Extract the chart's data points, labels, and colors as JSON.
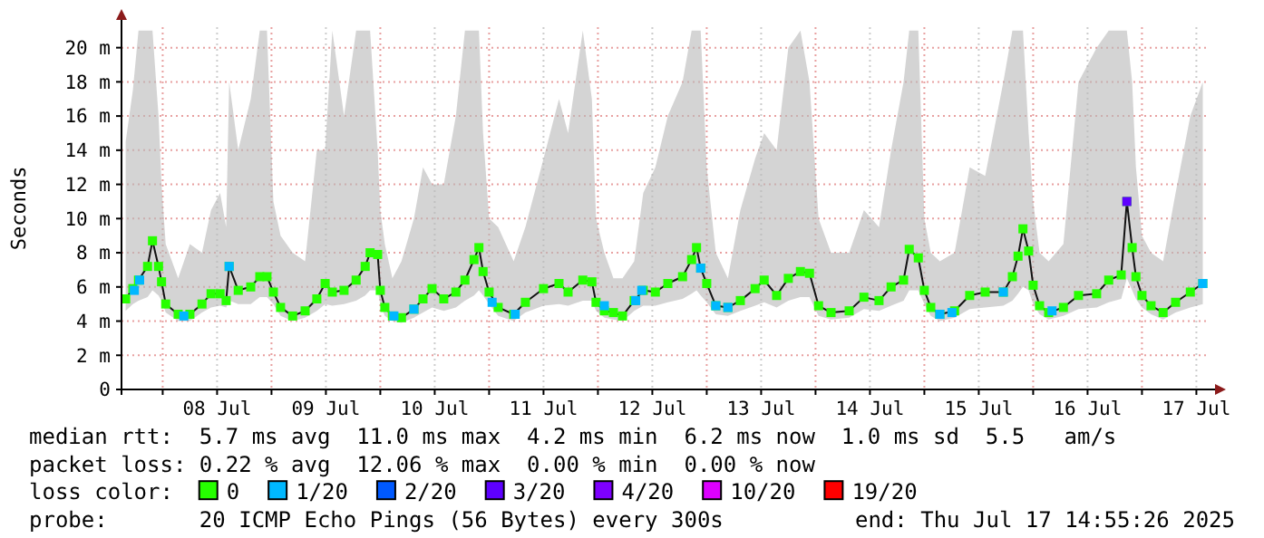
{
  "chart_data": {
    "type": "line",
    "ylabel": "Seconds",
    "xlim": [
      "2025-07-07T14:55",
      "2025-07-17T14:55"
    ],
    "xticks": [
      {
        "value": "2025-07-08T00:00",
        "label": null
      },
      {
        "value": "2025-07-08T12:00",
        "label": "08 Jul"
      },
      {
        "value": "2025-07-09T00:00",
        "label": null
      },
      {
        "value": "2025-07-09T12:00",
        "label": "09 Jul"
      },
      {
        "value": "2025-07-10T00:00",
        "label": null
      },
      {
        "value": "2025-07-10T12:00",
        "label": "10 Jul"
      },
      {
        "value": "2025-07-11T00:00",
        "label": null
      },
      {
        "value": "2025-07-11T12:00",
        "label": "11 Jul"
      },
      {
        "value": "2025-07-12T00:00",
        "label": null
      },
      {
        "value": "2025-07-12T12:00",
        "label": "12 Jul"
      },
      {
        "value": "2025-07-13T00:00",
        "label": null
      },
      {
        "value": "2025-07-13T12:00",
        "label": "13 Jul"
      },
      {
        "value": "2025-07-14T00:00",
        "label": null
      },
      {
        "value": "2025-07-14T12:00",
        "label": "14 Jul"
      },
      {
        "value": "2025-07-15T00:00",
        "label": null
      },
      {
        "value": "2025-07-15T12:00",
        "label": "15 Jul"
      },
      {
        "value": "2025-07-16T00:00",
        "label": null
      },
      {
        "value": "2025-07-16T12:00",
        "label": "16 Jul"
      },
      {
        "value": "2025-07-17T00:00",
        "label": null
      },
      {
        "value": "2025-07-17T12:00",
        "label": "17 Jul"
      }
    ],
    "ylim": [
      0,
      21.2
    ],
    "yticks": [
      0,
      {
        "value": 2,
        "label": "2 m"
      },
      {
        "value": 4,
        "label": "4 m"
      },
      {
        "value": 6,
        "label": "6 m"
      },
      {
        "value": 8,
        "label": "8 m"
      },
      {
        "value": 10,
        "label": "10 m"
      },
      {
        "value": 12,
        "label": "12 m"
      },
      {
        "value": 14,
        "label": "14 m"
      },
      {
        "value": 16,
        "label": "16 m"
      },
      {
        "value": 18,
        "label": "18 m"
      },
      {
        "value": 20,
        "label": "20 m"
      }
    ],
    "grid": true,
    "marker": "square",
    "legend": "bottom",
    "legend_title": "loss color:",
    "series": [
      {
        "name": "0",
        "color": "#26ff00",
        "x": [
          "2025-07-07T15:50",
          "2025-07-07T17:25",
          "2025-07-07T18:40",
          "2025-07-07T20:40",
          "2025-07-07T21:45",
          "2025-07-07T23:05",
          "2025-07-07T23:45",
          "2025-07-08T00:40",
          "2025-07-08T03:25",
          "2025-07-08T06:00",
          "2025-07-08T08:40",
          "2025-07-08T10:40",
          "2025-07-08T12:40",
          "2025-07-08T14:00",
          "2025-07-08T14:40",
          "2025-07-08T16:40",
          "2025-07-08T19:25",
          "2025-07-08T21:25",
          "2025-07-08T23:00",
          "2025-07-09T00:25",
          "2025-07-09T02:00",
          "2025-07-09T04:40",
          "2025-07-09T07:25",
          "2025-07-09T10:00",
          "2025-07-09T11:50",
          "2025-07-09T13:25",
          "2025-07-09T16:00",
          "2025-07-09T18:40",
          "2025-07-09T20:40",
          "2025-07-09T21:45",
          "2025-07-09T23:25",
          "2025-07-10T00:00",
          "2025-07-10T01:00",
          "2025-07-10T02:40",
          "2025-07-10T04:40",
          "2025-07-10T07:25",
          "2025-07-10T09:25",
          "2025-07-10T11:25",
          "2025-07-10T14:00",
          "2025-07-10T16:40",
          "2025-07-10T18:40",
          "2025-07-10T20:40",
          "2025-07-10T21:45",
          "2025-07-10T22:40",
          "2025-07-11T00:00",
          "2025-07-11T02:00",
          "2025-07-11T05:25",
          "2025-07-11T08:00",
          "2025-07-11T12:00",
          "2025-07-11T15:25",
          "2025-07-11T17:25",
          "2025-07-11T20:40",
          "2025-07-11T22:40",
          "2025-07-11T23:35",
          "2025-07-12T01:25",
          "2025-07-12T03:25",
          "2025-07-12T05:25",
          "2025-07-12T08:00",
          "2025-07-12T10:00",
          "2025-07-12T12:40",
          "2025-07-12T15:25",
          "2025-07-12T18:40",
          "2025-07-12T20:40",
          "2025-07-12T21:45",
          "2025-07-12T22:40",
          "2025-07-13T00:00",
          "2025-07-13T02:00",
          "2025-07-13T04:40",
          "2025-07-13T07:25",
          "2025-07-13T10:40",
          "2025-07-13T12:40",
          "2025-07-13T15:25",
          "2025-07-13T18:00",
          "2025-07-13T20:40",
          "2025-07-13T22:40",
          "2025-07-14T00:40",
          "2025-07-14T03:25",
          "2025-07-14T07:25",
          "2025-07-14T10:40",
          "2025-07-14T14:00",
          "2025-07-14T16:40",
          "2025-07-14T19:25",
          "2025-07-14T20:40",
          "2025-07-14T22:40",
          "2025-07-15T00:00",
          "2025-07-15T01:25",
          "2025-07-15T03:25",
          "2025-07-15T06:40",
          "2025-07-15T10:00",
          "2025-07-15T13:25",
          "2025-07-15T17:25",
          "2025-07-15T19:25",
          "2025-07-15T20:40",
          "2025-07-15T21:45",
          "2025-07-15T23:00",
          "2025-07-16T00:00",
          "2025-07-16T01:25",
          "2025-07-16T03:25",
          "2025-07-16T06:40",
          "2025-07-16T10:00",
          "2025-07-16T14:00",
          "2025-07-16T16:40",
          "2025-07-16T19:25",
          "2025-07-16T20:40",
          "2025-07-16T21:50",
          "2025-07-16T22:40",
          "2025-07-17T00:00",
          "2025-07-17T02:00",
          "2025-07-17T04:40",
          "2025-07-17T07:25",
          "2025-07-17T10:40",
          "2025-07-17T13:25"
        ],
        "values": [
          5.3,
          5.9,
          6.4,
          7.2,
          8.7,
          7.2,
          6.3,
          5.0,
          4.4,
          4.4,
          5.0,
          5.6,
          5.6,
          5.2,
          7.2,
          5.8,
          6.0,
          6.6,
          6.6,
          5.7,
          4.8,
          4.3,
          4.6,
          5.3,
          6.2,
          5.7,
          5.8,
          6.4,
          7.2,
          8.0,
          7.9,
          5.8,
          4.8,
          4.3,
          4.2,
          4.7,
          5.3,
          5.9,
          5.3,
          5.7,
          6.4,
          7.6,
          8.3,
          6.9,
          5.7,
          4.8,
          4.4,
          5.1,
          5.9,
          6.2,
          5.7,
          6.4,
          6.3,
          5.1,
          4.6,
          4.5,
          4.3,
          5.2,
          5.8,
          5.7,
          6.2,
          6.6,
          7.6,
          8.3,
          7.1,
          6.2,
          4.9,
          4.8,
          5.2,
          5.9,
          6.4,
          5.5,
          6.5,
          6.9,
          6.8,
          4.9,
          4.5,
          4.6,
          5.4,
          5.2,
          6.0,
          6.4,
          8.2,
          7.7,
          5.8,
          4.8,
          4.4,
          4.6,
          5.5,
          5.7,
          5.7,
          6.6,
          7.8,
          9.4,
          8.1,
          6.1,
          4.9,
          4.5,
          4.8,
          5.5,
          5.6,
          6.4,
          6.7,
          11.0,
          8.3,
          6.6,
          5.5,
          4.9,
          4.5,
          5.1,
          5.7,
          6.2
        ],
        "lower": [
          4.6,
          5.0,
          5.2,
          5.4,
          5.8,
          5.5,
          5.2,
          4.5,
          4.0,
          4.0,
          4.5,
          4.8,
          4.9,
          4.8,
          5.2,
          5.0,
          5.0,
          5.4,
          5.4,
          5.0,
          4.3,
          4.0,
          4.2,
          4.6,
          5.0,
          4.9,
          5.0,
          5.2,
          5.5,
          5.8,
          5.8,
          5.0,
          4.3,
          4.0,
          3.9,
          4.2,
          4.5,
          4.8,
          4.6,
          4.8,
          5.2,
          5.5,
          5.8,
          5.5,
          5.0,
          4.3,
          4.0,
          4.5,
          4.9,
          5.0,
          4.9,
          5.2,
          5.2,
          4.6,
          4.2,
          4.1,
          4.0,
          4.6,
          4.9,
          4.9,
          5.1,
          5.3,
          5.6,
          5.8,
          5.5,
          5.1,
          4.4,
          4.3,
          4.6,
          4.9,
          5.1,
          4.8,
          5.2,
          5.4,
          5.4,
          4.3,
          4.1,
          4.2,
          4.7,
          4.6,
          4.9,
          5.2,
          5.8,
          5.8,
          5.0,
          4.3,
          4.0,
          4.2,
          4.7,
          4.8,
          4.9,
          5.2,
          5.6,
          6.0,
          5.8,
          5.0,
          4.4,
          4.1,
          4.3,
          4.7,
          4.8,
          5.1,
          5.3,
          6.5,
          5.8,
          5.3,
          4.8,
          4.4,
          4.1,
          4.5,
          4.8,
          5.0
        ],
        "upper": [
          14.5,
          17.5,
          21,
          21,
          21,
          16,
          12,
          8.5,
          6.5,
          8.5,
          8,
          10.5,
          11.5,
          9.5,
          18,
          14,
          17,
          21,
          21,
          11,
          9,
          8,
          7.5,
          14,
          14,
          21,
          16,
          21,
          21,
          21,
          14,
          10.5,
          8.5,
          6.5,
          7.5,
          10,
          13,
          12,
          12,
          16,
          21,
          21,
          21,
          15,
          10,
          9.5,
          7.5,
          9.5,
          13.5,
          17,
          15,
          21,
          17,
          10,
          8,
          6.5,
          6.5,
          7.5,
          11.5,
          13,
          16,
          18,
          21,
          21,
          21,
          13,
          8,
          6.5,
          10.5,
          13.5,
          15,
          14,
          20,
          21,
          18,
          10,
          8,
          8,
          10.5,
          9.5,
          14,
          18,
          21,
          21,
          10,
          8,
          7.5,
          8,
          13,
          12.5,
          18,
          21,
          21,
          21,
          15,
          11,
          8,
          7.5,
          8.5,
          18,
          20,
          21,
          21,
          21,
          18,
          13,
          9,
          8,
          7.5,
          11.5,
          16,
          18
        ]
      },
      {
        "name": "1/20",
        "type": "scatter",
        "color": "#00b8ff",
        "x": [
          "2025-07-07T17:45",
          "2025-07-07T18:55",
          "2025-07-08T04:40",
          "2025-07-08T14:40",
          "2025-07-10T03:00",
          "2025-07-10T07:25",
          "2025-07-11T00:40",
          "2025-07-11T05:45",
          "2025-07-12T01:25",
          "2025-07-12T08:20",
          "2025-07-12T09:40",
          "2025-07-12T22:40",
          "2025-07-13T02:00",
          "2025-07-13T04:40",
          "2025-07-15T03:25",
          "2025-07-15T06:05",
          "2025-07-15T17:25",
          "2025-07-16T04:10",
          "2025-07-17T13:25"
        ],
        "values": [
          5.8,
          6.4,
          4.3,
          7.2,
          4.3,
          4.7,
          5.1,
          4.4,
          4.9,
          5.2,
          5.8,
          7.1,
          4.9,
          4.8,
          4.4,
          4.5,
          5.7,
          4.6,
          6.2
        ]
      },
      {
        "name": "2/20",
        "type": "scatter",
        "color": "#0059ff"
      },
      {
        "name": "3/20",
        "type": "scatter",
        "color": "#5e00ff",
        "x": [
          "2025-07-16T20:40"
        ],
        "values": [
          11.0
        ]
      },
      {
        "name": "4/20",
        "type": "scatter",
        "color": "#7e00ff"
      },
      {
        "name": "10/20",
        "type": "scatter",
        "color": "#dd00ff"
      },
      {
        "name": "19/20",
        "type": "scatter",
        "color": "#ff0000"
      }
    ],
    "annotations": [
      "median rtt:  5.7 ms avg  11.0 ms max  4.2 ms min  6.2 ms now  1.0 ms sd  5.5   am/s",
      "packet loss: 0.22 % avg  12.06 % max  0.00 % min  0.00 % now",
      "probe:       20 ICMP Echo Pings (56 Bytes) every 300s",
      "end: Thu Jul 17 14:55:26 2025"
    ]
  }
}
